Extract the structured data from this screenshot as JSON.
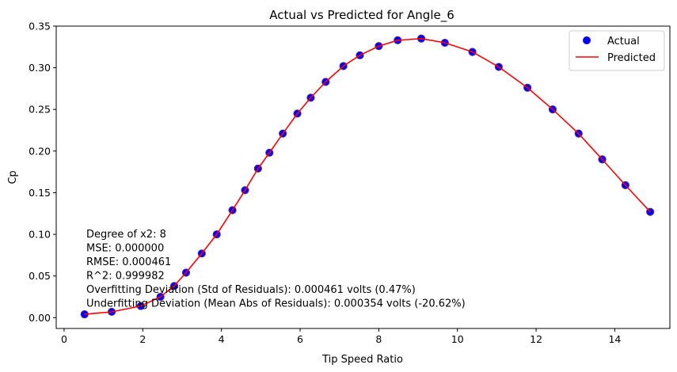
{
  "chart_data": {
    "type": "scatter",
    "title": "Actual vs Predicted for Angle_6",
    "xlabel": "Tip Speed Ratio",
    "ylabel": "Cp",
    "xlim": [
      -0.2,
      15.4
    ],
    "ylim": [
      -0.013,
      0.35
    ],
    "xticks": [
      0,
      2,
      4,
      6,
      8,
      10,
      12,
      14
    ],
    "yticks": [
      0.0,
      0.05,
      0.1,
      0.15,
      0.2,
      0.25,
      0.3,
      0.35
    ],
    "ytick_labels": [
      "0.00",
      "0.05",
      "0.10",
      "0.15",
      "0.20",
      "0.25",
      "0.30",
      "0.35"
    ],
    "legend_position": "top-right",
    "grid": false,
    "series": [
      {
        "name": "Actual",
        "kind": "scatter",
        "color": "#0000ff",
        "edgecolor": "#5a2a8a",
        "x": [
          0.52,
          1.21,
          1.95,
          2.45,
          2.8,
          3.1,
          3.5,
          3.88,
          4.28,
          4.6,
          4.93,
          5.22,
          5.56,
          5.93,
          6.27,
          6.65,
          7.1,
          7.52,
          8.0,
          8.48,
          9.08,
          9.68,
          10.38,
          11.05,
          11.78,
          12.42,
          13.08,
          13.68,
          14.27,
          14.9
        ],
        "y": [
          0.004,
          0.007,
          0.014,
          0.025,
          0.038,
          0.054,
          0.077,
          0.1,
          0.129,
          0.153,
          0.179,
          0.198,
          0.221,
          0.245,
          0.264,
          0.283,
          0.302,
          0.315,
          0.326,
          0.333,
          0.335,
          0.33,
          0.319,
          0.301,
          0.276,
          0.25,
          0.221,
          0.19,
          0.159,
          0.127
        ]
      },
      {
        "name": "Predicted",
        "kind": "line",
        "color": "#ff0000",
        "x": [
          0.52,
          1.21,
          1.95,
          2.45,
          2.8,
          3.1,
          3.5,
          3.88,
          4.28,
          4.6,
          4.93,
          5.22,
          5.56,
          5.93,
          6.27,
          6.65,
          7.1,
          7.52,
          8.0,
          8.48,
          9.08,
          9.68,
          10.38,
          11.05,
          11.78,
          12.42,
          13.08,
          13.68,
          14.27,
          14.9
        ],
        "y": [
          0.004,
          0.007,
          0.014,
          0.025,
          0.038,
          0.054,
          0.077,
          0.1,
          0.129,
          0.153,
          0.179,
          0.198,
          0.221,
          0.245,
          0.264,
          0.283,
          0.302,
          0.315,
          0.326,
          0.333,
          0.335,
          0.33,
          0.319,
          0.301,
          0.276,
          0.25,
          0.221,
          0.19,
          0.159,
          0.127
        ]
      }
    ],
    "annotations": [
      "Degree of x2: 8",
      "MSE: 0.000000",
      "RMSE: 0.000461",
      "R^2: 0.999982",
      "Overfitting Deviation (Std of Residuals): 0.000461 volts (0.47%)",
      "Underfitting Deviation (Mean Abs of Residuals): 0.000354 volts (-20.62%)"
    ]
  }
}
